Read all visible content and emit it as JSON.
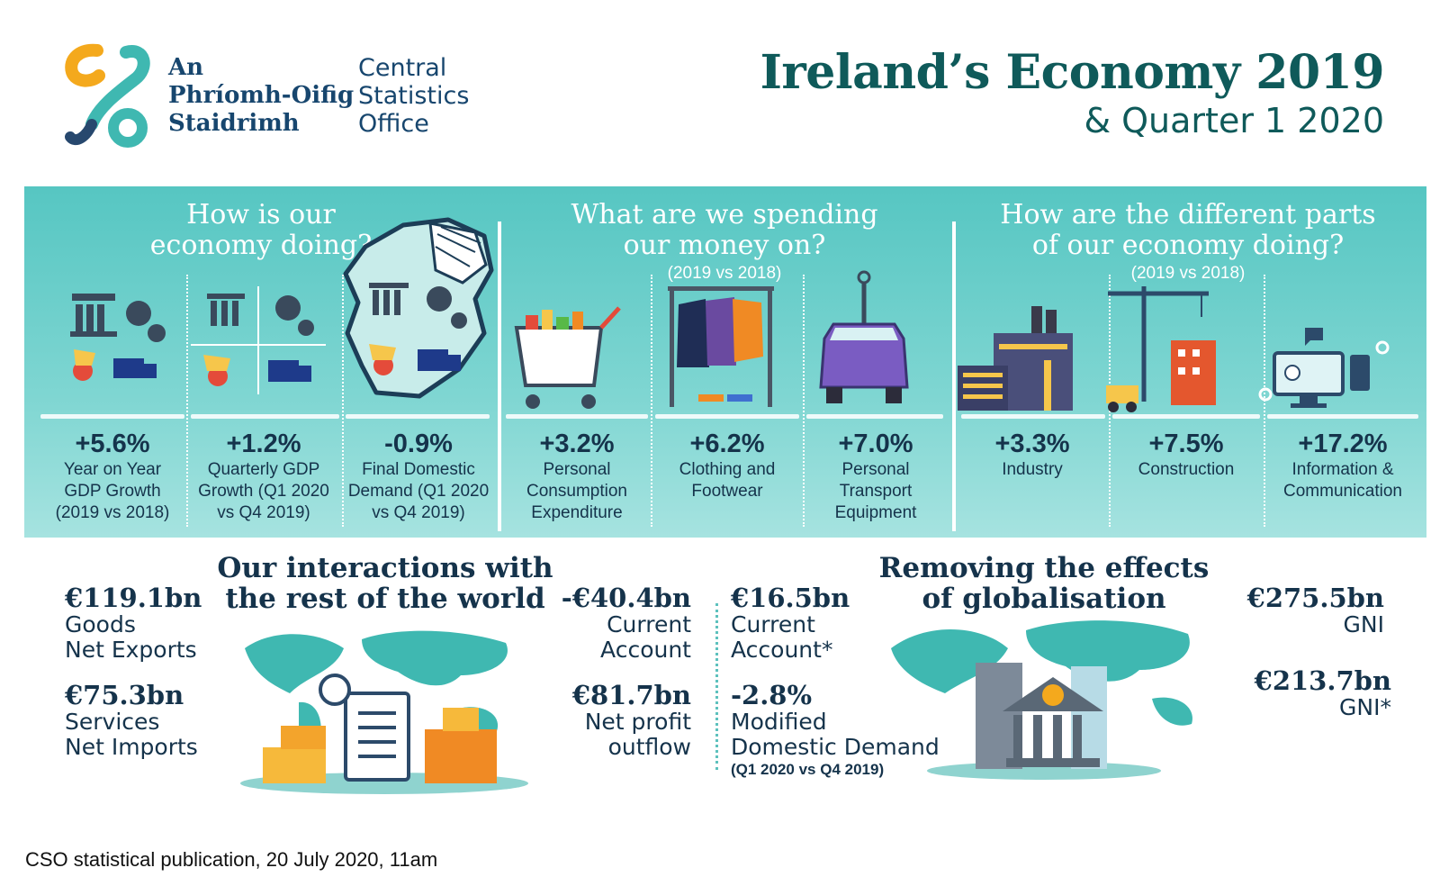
{
  "header": {
    "org_irish": [
      "An",
      "Phríomh-Oifig",
      "Staidrimh"
    ],
    "org_english": [
      "Central",
      "Statistics",
      "Office"
    ],
    "title": "Ireland’s Economy 2019",
    "subtitle": "& Quarter 1 2020"
  },
  "colors": {
    "teal_band": "#56c6c2",
    "dark_navy": "#15334b",
    "title_teal": "#0f5a5a",
    "logo_orange": "#f4a91d",
    "logo_teal": "#3fb8b1"
  },
  "economy": {
    "question": [
      "How is our",
      "economy doing?"
    ],
    "stats": [
      {
        "value": "+5.6%",
        "label": [
          "Year on Year",
          "GDP Growth",
          "(2019 vs 2018)"
        ]
      },
      {
        "value": "+1.2%",
        "label": [
          "Quarterly GDP",
          "Growth (Q1 2020",
          "vs Q4 2019)"
        ]
      },
      {
        "value": "-0.9%",
        "label": [
          "Final Domestic",
          "Demand (Q1 2020",
          "vs Q4 2019)"
        ]
      }
    ]
  },
  "spending": {
    "question": [
      "What are we spending",
      "our money on?"
    ],
    "period": "(2019 vs 2018)",
    "stats": [
      {
        "value": "+3.2%",
        "label": [
          "Personal",
          "Consumption",
          "Expenditure"
        ]
      },
      {
        "value": "+6.2%",
        "label": [
          "Clothing and",
          "Footwear"
        ]
      },
      {
        "value": "+7.0%",
        "label": [
          "Personal",
          "Transport",
          "Equipment"
        ]
      }
    ]
  },
  "sectors": {
    "question": [
      "How are the different parts",
      "of our economy doing?"
    ],
    "period": "(2019 vs 2018)",
    "stats": [
      {
        "value": "+3.3%",
        "label": [
          "Industry"
        ]
      },
      {
        "value": "+7.5%",
        "label": [
          "Construction"
        ]
      },
      {
        "value": "+17.2%",
        "label": [
          "Information &",
          "Communication"
        ]
      }
    ]
  },
  "interactions": {
    "title": [
      "Our interactions with",
      "the rest of the world"
    ],
    "goods": {
      "value": "€119.1bn",
      "label": [
        "Goods",
        "Net Exports"
      ]
    },
    "services": {
      "value": "€75.3bn",
      "label": [
        "Services",
        "Net Imports"
      ]
    },
    "current_account": {
      "value": "-€40.4bn",
      "label": [
        "Current",
        "Account"
      ]
    },
    "net_profit": {
      "value": "€81.7bn",
      "label": [
        "Net profit",
        "outflow"
      ]
    }
  },
  "globalisation": {
    "title": [
      "Removing the effects",
      "of globalisation"
    ],
    "current_account_star": {
      "value": "€16.5bn",
      "label": [
        "Current",
        "Account*"
      ]
    },
    "modified_demand": {
      "value": "-2.8%",
      "label": [
        "Modified",
        "Domestic Demand"
      ],
      "note": "(Q1 2020 vs Q4 2019)"
    },
    "gni": {
      "value": "€275.5bn",
      "label": "GNI"
    },
    "gni_star": {
      "value": "€213.7bn",
      "label": "GNI*"
    }
  },
  "footer": "CSO statistical publication, 20 July 2020, 11am"
}
